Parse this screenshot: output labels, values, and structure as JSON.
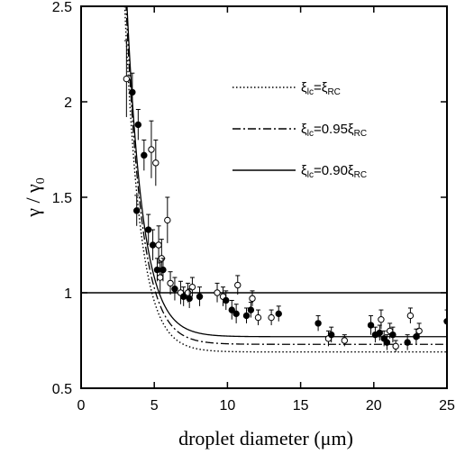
{
  "chart_data": {
    "type": "scatter",
    "title": "",
    "xlabel": "droplet diameter (μm)",
    "ylabel": "γ / γ",
    "ylabel_sub": "0",
    "xlim": [
      0,
      25
    ],
    "ylim": [
      0.5,
      2.5
    ],
    "xticks": [
      "0",
      "5",
      "10",
      "15",
      "20",
      "25"
    ],
    "yticks": [
      "0.5",
      "1",
      "1.5",
      "2",
      "2.5"
    ],
    "grid": false,
    "reference_line_y": 1,
    "legend_position": "top-right",
    "legend": [
      {
        "style": "dotted",
        "text_main": "ξ",
        "sub1": "lc",
        "eq": "=ξ",
        "sub2": "RC"
      },
      {
        "style": "dash-dot",
        "text_main": "ξ",
        "sub1": "lc",
        "eq": "=0.95ξ",
        "sub2": "RC"
      },
      {
        "style": "solid",
        "text_main": "ξ",
        "sub1": "lc",
        "eq": "=0.90ξ",
        "sub2": "RC"
      }
    ],
    "curves": [
      {
        "style": "dotted",
        "asymptote": 0.69,
        "amplitude": 30.74,
        "decay": 0.95
      },
      {
        "style": "dash-dot",
        "asymptote": 0.73,
        "amplitude": 30.9,
        "decay": 0.93
      },
      {
        "style": "solid",
        "asymptote": 0.77,
        "amplitude": 31.0,
        "decay": 0.92
      }
    ],
    "points_open": [
      {
        "x": 3.1,
        "y": 2.12,
        "err": 0.2
      },
      {
        "x": 4.8,
        "y": 1.75,
        "err": 0.15
      },
      {
        "x": 5.1,
        "y": 1.68,
        "err": 0.12
      },
      {
        "x": 5.3,
        "y": 1.25,
        "err": 0.1
      },
      {
        "x": 5.5,
        "y": 1.18,
        "err": 0.1
      },
      {
        "x": 5.9,
        "y": 1.38,
        "err": 0.12
      },
      {
        "x": 5.4,
        "y": 1.08,
        "err": 0.08
      },
      {
        "x": 6.1,
        "y": 1.05,
        "err": 0.06
      },
      {
        "x": 6.8,
        "y": 1.0,
        "err": 0.06
      },
      {
        "x": 7.3,
        "y": 1.0,
        "err": 0.05
      },
      {
        "x": 7.6,
        "y": 1.03,
        "err": 0.05
      },
      {
        "x": 9.3,
        "y": 1.0,
        "err": 0.05
      },
      {
        "x": 9.7,
        "y": 0.98,
        "err": 0.05
      },
      {
        "x": 10.7,
        "y": 1.04,
        "err": 0.05
      },
      {
        "x": 11.7,
        "y": 0.97,
        "err": 0.04
      },
      {
        "x": 12.1,
        "y": 0.87,
        "err": 0.04
      },
      {
        "x": 13.0,
        "y": 0.87,
        "err": 0.04
      },
      {
        "x": 16.9,
        "y": 0.76,
        "err": 0.04
      },
      {
        "x": 18.0,
        "y": 0.75,
        "err": 0.03
      },
      {
        "x": 20.5,
        "y": 0.86,
        "err": 0.05
      },
      {
        "x": 21.1,
        "y": 0.8,
        "err": 0.04
      },
      {
        "x": 21.5,
        "y": 0.72,
        "err": 0.03
      },
      {
        "x": 22.5,
        "y": 0.88,
        "err": 0.04
      },
      {
        "x": 23.1,
        "y": 0.8,
        "err": 0.04
      }
    ],
    "points_filled": [
      {
        "x": 3.5,
        "y": 2.05,
        "err": 0.1
      },
      {
        "x": 3.9,
        "y": 1.88,
        "err": 0.08
      },
      {
        "x": 3.8,
        "y": 1.43,
        "err": 0.08
      },
      {
        "x": 4.3,
        "y": 1.72,
        "err": 0.08
      },
      {
        "x": 4.6,
        "y": 1.33,
        "err": 0.08
      },
      {
        "x": 4.9,
        "y": 1.25,
        "err": 0.08
      },
      {
        "x": 5.2,
        "y": 1.12,
        "err": 0.06
      },
      {
        "x": 5.6,
        "y": 1.12,
        "err": 0.06
      },
      {
        "x": 6.4,
        "y": 1.02,
        "err": 0.06
      },
      {
        "x": 7.0,
        "y": 0.98,
        "err": 0.05
      },
      {
        "x": 7.4,
        "y": 0.97,
        "err": 0.05
      },
      {
        "x": 8.1,
        "y": 0.98,
        "err": 0.05
      },
      {
        "x": 9.9,
        "y": 0.96,
        "err": 0.05
      },
      {
        "x": 10.3,
        "y": 0.91,
        "err": 0.05
      },
      {
        "x": 10.6,
        "y": 0.89,
        "err": 0.05
      },
      {
        "x": 11.3,
        "y": 0.88,
        "err": 0.04
      },
      {
        "x": 11.6,
        "y": 0.91,
        "err": 0.04
      },
      {
        "x": 13.5,
        "y": 0.89,
        "err": 0.04
      },
      {
        "x": 16.2,
        "y": 0.84,
        "err": 0.04
      },
      {
        "x": 17.1,
        "y": 0.78,
        "err": 0.04
      },
      {
        "x": 19.8,
        "y": 0.83,
        "err": 0.05
      },
      {
        "x": 20.1,
        "y": 0.78,
        "err": 0.04
      },
      {
        "x": 20.4,
        "y": 0.79,
        "err": 0.04
      },
      {
        "x": 20.7,
        "y": 0.76,
        "err": 0.04
      },
      {
        "x": 20.9,
        "y": 0.74,
        "err": 0.04
      },
      {
        "x": 21.3,
        "y": 0.78,
        "err": 0.04
      },
      {
        "x": 22.3,
        "y": 0.74,
        "err": 0.04
      },
      {
        "x": 22.9,
        "y": 0.77,
        "err": 0.04
      },
      {
        "x": 25.0,
        "y": 0.85,
        "err": 0.06
      }
    ]
  }
}
